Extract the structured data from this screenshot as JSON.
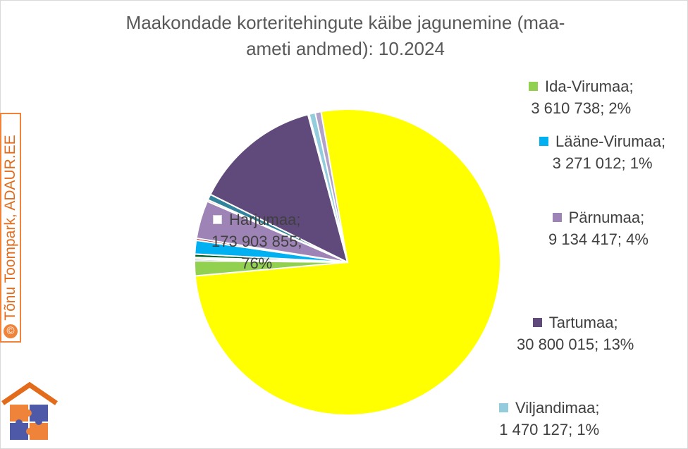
{
  "chart_data": {
    "type": "pie",
    "title": "Maakondade korteritehingute käibe jagunemine (maa-ameti andmed): 10.2024",
    "title_lines": [
      "Maakondade korteritehingute käibe jagunemine (maa-",
      "ameti andmed): 10.2024"
    ],
    "slices": [
      {
        "name": "Harjumaa",
        "value": 173903855,
        "value_text": "173 903 855",
        "percent": "76%",
        "color": "#ffff00"
      },
      {
        "name": "Ida-Virumaa",
        "value": 3610738,
        "value_text": "3 610 738",
        "percent": "2%",
        "color": "#92d050"
      },
      {
        "name": "",
        "value": 400000,
        "color": "#4472c4"
      },
      {
        "name": "",
        "value": 400000,
        "color": "#ffc000"
      },
      {
        "name": "",
        "value": 800000,
        "color": "#00612a"
      },
      {
        "name": "Lääne-Virumaa",
        "value": 3271012,
        "value_text": "3 271 012",
        "percent": "1%",
        "color": "#00b0f0"
      },
      {
        "name": "",
        "value": 500000,
        "color": "#c00000"
      },
      {
        "name": "Pärnumaa",
        "value": 9134417,
        "value_text": "9 134 417",
        "percent": "4%",
        "color": "#9e84b6"
      },
      {
        "name": "",
        "value": 400000,
        "color": "#f0833a"
      },
      {
        "name": "",
        "value": 1400000,
        "color": "#31849b"
      },
      {
        "name": "Tartumaa",
        "value": 30800015,
        "value_text": "30 800 015",
        "percent": "13%",
        "color": "#604a7b"
      },
      {
        "name": "",
        "value": 300000,
        "color": "#fac090"
      },
      {
        "name": "Viljandimaa",
        "value": 1470127,
        "value_text": "1 470 127",
        "percent": "1%",
        "color": "#93cddd"
      },
      {
        "name": "",
        "value": 1400000,
        "color": "#b3a2c7"
      }
    ],
    "labels": [
      {
        "name": "Harjumaa",
        "line2": "173 903 855;",
        "line3": "76%",
        "color": "#ffffff"
      },
      {
        "name": "Ida-Virumaa",
        "line2": "3 610 738; 2%",
        "color": "#92d050"
      },
      {
        "name": "Lääne-Virumaa",
        "line2": "3 271 012; 1%",
        "color": "#00b0f0"
      },
      {
        "name": "Pärnumaa",
        "line2": "9 134 417; 4%",
        "color": "#9e84b6"
      },
      {
        "name": "Tartumaa",
        "line2": "30 800 015; 13%",
        "color": "#604a7b"
      },
      {
        "name": "Viljandimaa",
        "line2": "1 470 127; 1%",
        "color": "#93cddd"
      }
    ]
  },
  "watermark": {
    "symbol": "©",
    "text": "Tõnu Toompark, ADAUR.EE"
  },
  "logo": {
    "icon": "house-puzzle-icon"
  }
}
